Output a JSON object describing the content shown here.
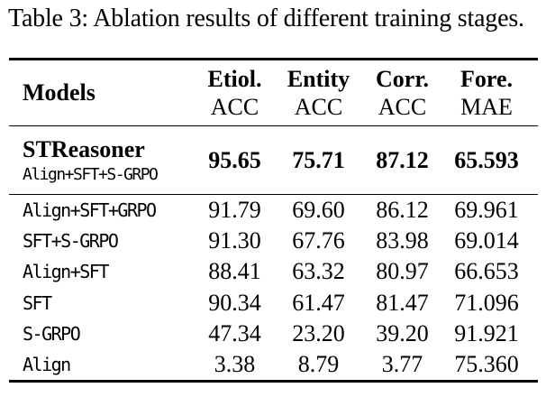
{
  "caption": "Table 3: Ablation results of different training stages.",
  "colors": {
    "text": "#000000",
    "background": "#ffffff",
    "rule": "#000000"
  },
  "table": {
    "header": {
      "models": "Models",
      "columns": [
        {
          "metric": "Etiol.",
          "measure": "ACC"
        },
        {
          "metric": "Entity",
          "measure": "ACC"
        },
        {
          "metric": "Corr.",
          "measure": "ACC"
        },
        {
          "metric": "Fore.",
          "measure": "MAE"
        }
      ]
    },
    "highlight": {
      "name": "STReasoner",
      "stages": "Align+SFT+S-GRPO",
      "values": [
        "95.65",
        "75.71",
        "87.12",
        "65.593"
      ]
    },
    "rows": [
      {
        "name": "Align+SFT+GRPO",
        "values": [
          "91.79",
          "69.60",
          "86.12",
          "69.961"
        ]
      },
      {
        "name": "SFT+S-GRPO",
        "values": [
          "91.30",
          "67.76",
          "83.98",
          "69.014"
        ]
      },
      {
        "name": "Align+SFT",
        "values": [
          "88.41",
          "63.32",
          "80.97",
          "66.653"
        ]
      },
      {
        "name": "SFT",
        "values": [
          "90.34",
          "61.47",
          "81.47",
          "71.096"
        ]
      },
      {
        "name": "S-GRPO",
        "values": [
          "47.34",
          "23.20",
          "39.20",
          "91.921"
        ]
      },
      {
        "name": "Align",
        "values": [
          "3.38",
          "8.79",
          "3.77",
          "75.360"
        ]
      }
    ]
  }
}
